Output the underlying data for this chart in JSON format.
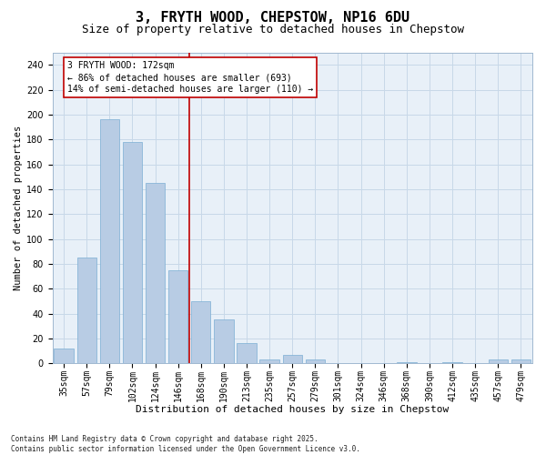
{
  "title": "3, FRYTH WOOD, CHEPSTOW, NP16 6DU",
  "subtitle": "Size of property relative to detached houses in Chepstow",
  "xlabel": "Distribution of detached houses by size in Chepstow",
  "ylabel": "Number of detached properties",
  "categories": [
    "35sqm",
    "57sqm",
    "79sqm",
    "102sqm",
    "124sqm",
    "146sqm",
    "168sqm",
    "190sqm",
    "213sqm",
    "235sqm",
    "257sqm",
    "279sqm",
    "301sqm",
    "324sqm",
    "346sqm",
    "368sqm",
    "390sqm",
    "412sqm",
    "435sqm",
    "457sqm",
    "479sqm"
  ],
  "values": [
    12,
    85,
    196,
    178,
    145,
    75,
    50,
    35,
    16,
    3,
    7,
    3,
    0,
    0,
    0,
    1,
    0,
    1,
    0,
    3,
    3
  ],
  "bar_color": "#b8cce4",
  "bar_edgecolor": "#7bafd4",
  "vline_color": "#c00000",
  "vline_x": 5.5,
  "annotation_line1": "3 FRYTH WOOD: 172sqm",
  "annotation_line2": "← 86% of detached houses are smaller (693)",
  "annotation_line3": "14% of semi-detached houses are larger (110) →",
  "ann_edgecolor": "#c00000",
  "ylim": [
    0,
    250
  ],
  "yticks": [
    0,
    20,
    40,
    60,
    80,
    100,
    120,
    140,
    160,
    180,
    200,
    220,
    240
  ],
  "title_fontsize": 11,
  "subtitle_fontsize": 9,
  "xlabel_fontsize": 8,
  "ylabel_fontsize": 7.5,
  "tick_fontsize": 7,
  "ann_fontsize": 7,
  "footer_fontsize": 5.5,
  "footer_text": "Contains HM Land Registry data © Crown copyright and database right 2025.\nContains public sector information licensed under the Open Government Licence v3.0.",
  "background_color": "#ffffff",
  "plot_bg_color": "#e8f0f8",
  "grid_color": "#c8d8e8"
}
